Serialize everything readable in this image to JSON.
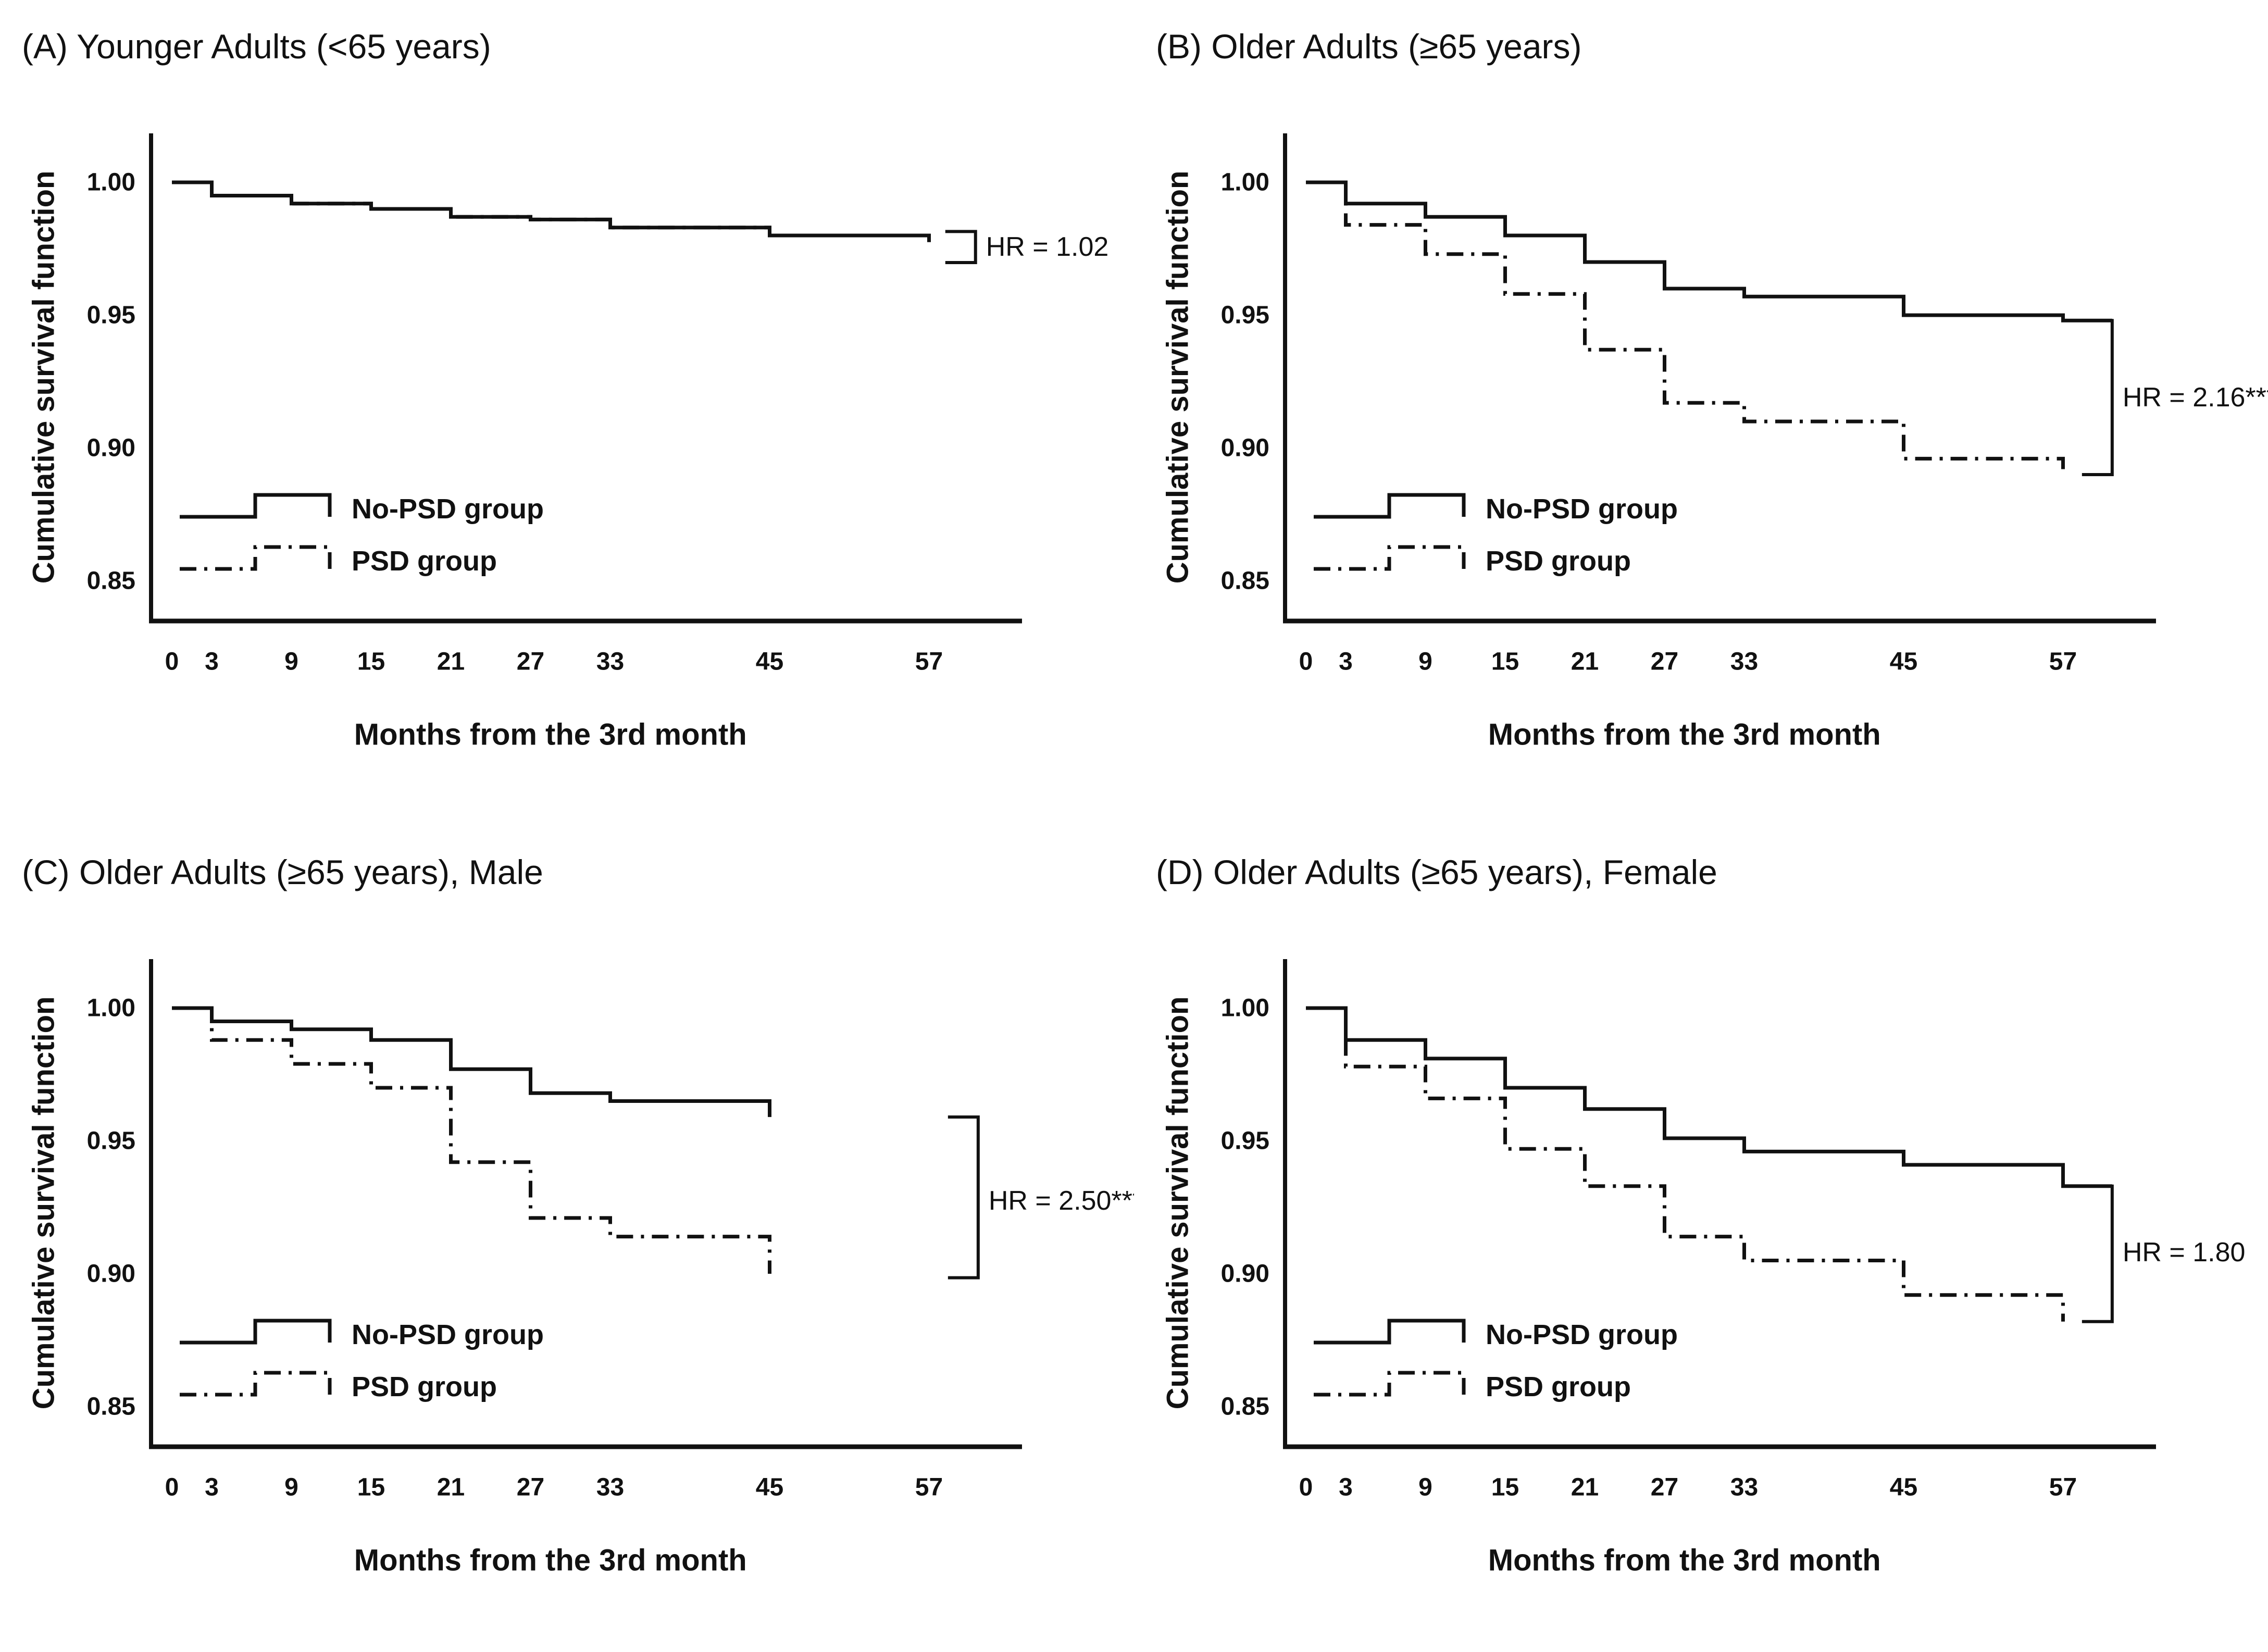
{
  "page": {
    "background": "#ffffff",
    "line_color": "#111111"
  },
  "chart_data": [
    {
      "id": "A",
      "type": "line",
      "subtype": "kaplan-meier-step",
      "title": "(A) Younger Adults (<65 years)",
      "xlabel": "Months from the 3rd month",
      "ylabel": "Cumulative survival function",
      "x_ticks": [
        0,
        3,
        9,
        15,
        21,
        27,
        33,
        45,
        57
      ],
      "y_ticks": [
        {
          "label": "1.00",
          "value": 1.0
        },
        {
          "label": "0.95",
          "value": 0.95
        },
        {
          "label": "0.90",
          "value": 0.9
        },
        {
          "label": "0.85",
          "value": 0.85
        }
      ],
      "ylim": [
        0.84,
        1.005
      ],
      "hr_label": "HR = 1.02",
      "bracket": {
        "x_month": 60.5,
        "top": 0.9815,
        "bottom": 0.9698,
        "label_value": 0.9757
      },
      "legend": [
        {
          "label": "No-PSD group",
          "line_style": "solid"
        },
        {
          "label": "PSD group",
          "line_style": "dash-dot"
        }
      ],
      "series": [
        {
          "name": "PSD group",
          "line_style": "dash-dot",
          "steps": [
            [
              0,
              1.0
            ],
            [
              3,
              0.995
            ],
            [
              9,
              0.992
            ],
            [
              15,
              0.99
            ],
            [
              21,
              0.987
            ],
            [
              27,
              0.986
            ],
            [
              33,
              0.983
            ],
            [
              45,
              0.98
            ]
          ],
          "end": [
            57,
            0.9775
          ],
          "tail": null
        },
        {
          "name": "No-PSD group",
          "line_style": "solid",
          "steps": [
            [
              0,
              1.0
            ],
            [
              3,
              0.995
            ],
            [
              9,
              0.992
            ],
            [
              15,
              0.99
            ],
            [
              21,
              0.987
            ],
            [
              27,
              0.986
            ],
            [
              33,
              0.983
            ],
            [
              45,
              0.98
            ]
          ],
          "end": [
            57,
            0.978
          ],
          "tail": null
        }
      ]
    },
    {
      "id": "B",
      "type": "line",
      "subtype": "kaplan-meier-step",
      "title": "(B) Older Adults (≥65 years)",
      "xlabel": "Months from the 3rd month",
      "ylabel": "Cumulative survival function",
      "x_ticks": [
        0,
        3,
        9,
        15,
        21,
        27,
        33,
        45,
        57
      ],
      "y_ticks": [
        {
          "label": "1.00",
          "value": 1.0
        },
        {
          "label": "0.95",
          "value": 0.95
        },
        {
          "label": "0.90",
          "value": 0.9
        },
        {
          "label": "0.85",
          "value": 0.85
        }
      ],
      "ylim": [
        0.84,
        1.005
      ],
      "hr_label": "HR = 2.16***",
      "bracket": {
        "x_month": 60.7,
        "top": 0.948,
        "bottom": 0.89,
        "label_value": 0.919
      },
      "legend": [
        {
          "label": "No-PSD group",
          "line_style": "solid"
        },
        {
          "label": "PSD group",
          "line_style": "dash-dot"
        }
      ],
      "series": [
        {
          "name": "PSD group",
          "line_style": "dash-dot",
          "steps": [
            [
              0,
              1.0
            ],
            [
              3,
              0.984
            ],
            [
              9,
              0.973
            ],
            [
              15,
              0.958
            ],
            [
              21,
              0.937
            ],
            [
              27,
              0.917
            ],
            [
              33,
              0.91
            ],
            [
              45,
              0.896
            ]
          ],
          "end": [
            57,
            0.892
          ],
          "tail": null
        },
        {
          "name": "No-PSD group",
          "line_style": "solid",
          "steps": [
            [
              0,
              1.0
            ],
            [
              3,
              0.992
            ],
            [
              9,
              0.987
            ],
            [
              15,
              0.98
            ],
            [
              21,
              0.97
            ],
            [
              27,
              0.96
            ],
            [
              33,
              0.957
            ],
            [
              45,
              0.95
            ]
          ],
          "end": [
            57,
            0.948
          ],
          "tail": 60.7
        }
      ]
    },
    {
      "id": "C",
      "type": "line",
      "subtype": "kaplan-meier-step",
      "title": "(C) Older Adults (≥65 years), Male",
      "xlabel": "Months from the 3rd month",
      "ylabel": "Cumulative survival function",
      "x_ticks": [
        0,
        3,
        9,
        15,
        21,
        27,
        33,
        45,
        57
      ],
      "y_ticks": [
        {
          "label": "1.00",
          "value": 1.0
        },
        {
          "label": "0.95",
          "value": 0.95
        },
        {
          "label": "0.90",
          "value": 0.9
        },
        {
          "label": "0.85",
          "value": 0.85
        }
      ],
      "ylim": [
        0.84,
        1.005
      ],
      "hr_label": "HR = 2.50***",
      "bracket": {
        "x_month": 60.7,
        "top": 0.959,
        "bottom": 0.8985,
        "label_value": 0.9275
      },
      "legend": [
        {
          "label": "No-PSD group",
          "line_style": "solid"
        },
        {
          "label": "PSD group",
          "line_style": "dash-dot"
        }
      ],
      "series": [
        {
          "name": "PSD group",
          "line_style": "dash-dot",
          "steps": [
            [
              0,
              1.0
            ],
            [
              3,
              0.988
            ],
            [
              9,
              0.979
            ],
            [
              15,
              0.97
            ],
            [
              21,
              0.942
            ],
            [
              27,
              0.921
            ],
            [
              33,
              0.914
            ]
          ],
          "end": [
            45,
            0.9
          ],
          "tail": null
        },
        {
          "name": "No-PSD group",
          "line_style": "solid",
          "steps": [
            [
              0,
              1.0
            ],
            [
              3,
              0.995
            ],
            [
              9,
              0.992
            ],
            [
              15,
              0.988
            ],
            [
              21,
              0.977
            ],
            [
              27,
              0.968
            ],
            [
              33,
              0.965
            ]
          ],
          "end": [
            45,
            0.959
          ],
          "tail": null
        }
      ]
    },
    {
      "id": "D",
      "type": "line",
      "subtype": "kaplan-meier-step",
      "title": "(D) Older Adults (≥65 years), Female",
      "xlabel": "Months from the 3rd month",
      "ylabel": "Cumulative survival function",
      "x_ticks": [
        0,
        3,
        9,
        15,
        21,
        27,
        33,
        45,
        57
      ],
      "y_ticks": [
        {
          "label": "1.00",
          "value": 1.0
        },
        {
          "label": "0.95",
          "value": 0.95
        },
        {
          "label": "0.90",
          "value": 0.9
        },
        {
          "label": "0.85",
          "value": 0.85
        }
      ],
      "ylim": [
        0.84,
        1.005
      ],
      "hr_label": "HR = 1.80",
      "bracket": {
        "x_month": 60.7,
        "top": 0.933,
        "bottom": 0.882,
        "label_value": 0.908
      },
      "legend": [
        {
          "label": "No-PSD group",
          "line_style": "solid"
        },
        {
          "label": "PSD group",
          "line_style": "dash-dot"
        }
      ],
      "series": [
        {
          "name": "PSD group",
          "line_style": "dash-dot",
          "steps": [
            [
              0,
              1.0
            ],
            [
              3,
              0.978
            ],
            [
              9,
              0.966
            ],
            [
              15,
              0.947
            ],
            [
              21,
              0.933
            ],
            [
              27,
              0.914
            ],
            [
              33,
              0.905
            ],
            [
              45,
              0.892
            ]
          ],
          "end": [
            57,
            0.882
          ],
          "tail": null
        },
        {
          "name": "No-PSD group",
          "line_style": "solid",
          "steps": [
            [
              0,
              1.0
            ],
            [
              3,
              0.988
            ],
            [
              9,
              0.981
            ],
            [
              15,
              0.97
            ],
            [
              21,
              0.962
            ],
            [
              27,
              0.951
            ],
            [
              33,
              0.946
            ],
            [
              45,
              0.941
            ]
          ],
          "end": [
            57,
            0.933
          ],
          "tail": 60.7
        }
      ]
    }
  ]
}
